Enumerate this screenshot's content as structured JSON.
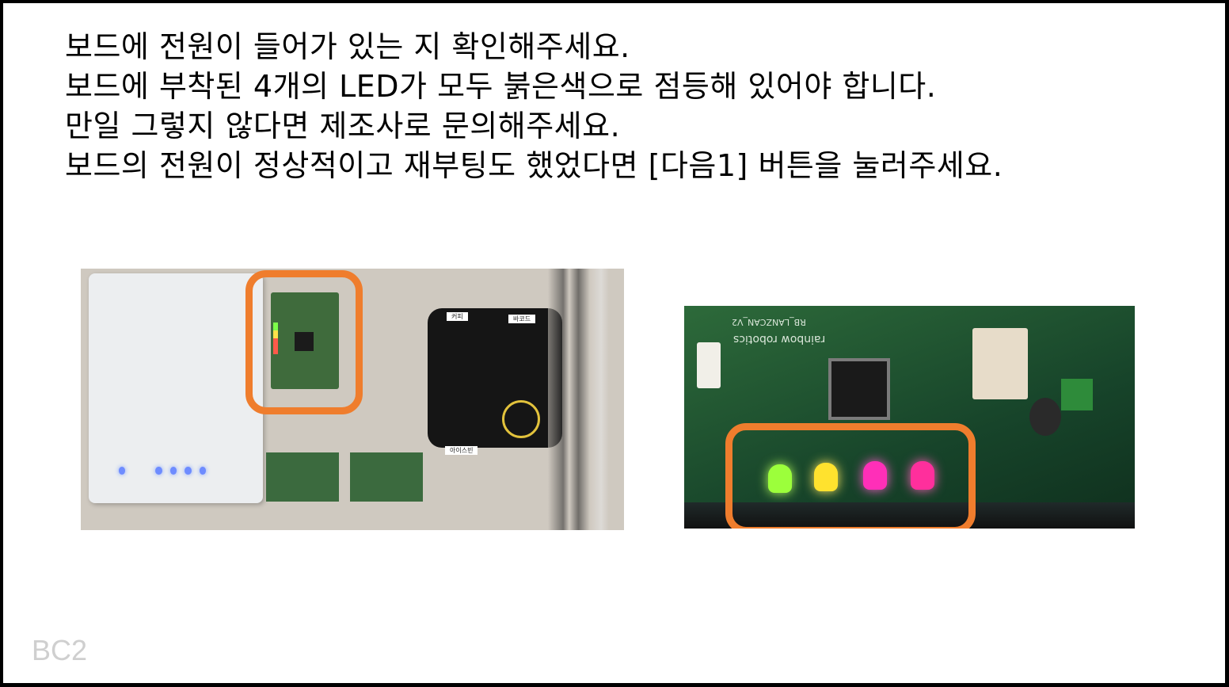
{
  "instructions": {
    "lines": [
      "보드에 전원이 들어가 있는 지 확인해주세요.",
      "보드에 부착된 4개의 LED가 모두 붉은색으로 점등해 있어야 합니다.",
      "만일 그렇지 않다면 제조사로 문의해주세요.",
      "보드의 전원이 정상적이고 재부팅도 했었다면 [다음1] 버튼을 눌러주세요."
    ]
  },
  "photos": {
    "left": {
      "device_labels": [
        "커피",
        "바코드",
        "아이스빈"
      ]
    },
    "right": {
      "board_brand": "rainbow robotics",
      "board_model": "RB_LANZCAN_V2"
    }
  },
  "highlight_color": "#ef7d2d",
  "slide_label": "BC2"
}
